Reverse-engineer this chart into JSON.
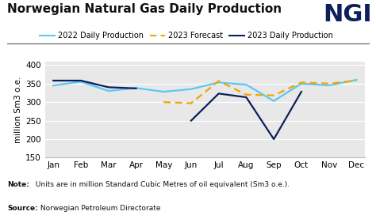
{
  "title": "Norwegian Natural Gas Daily Production",
  "ngi_logo": "NGI",
  "ylabel": "million Sm3 o.e.",
  "note_bold": "Note:",
  "note_rest": " Units are in million Standard Cubic Metres of oil equivalent (Sm3 o.e.).",
  "source_bold": "Source:",
  "source_rest": " Norwegian Petroleum Directorate",
  "months": [
    "Jan",
    "Feb",
    "Mar",
    "Apr",
    "May",
    "Jun",
    "Jul",
    "Aug",
    "Sep",
    "Oct",
    "Nov",
    "Dec"
  ],
  "ylim": [
    150,
    410
  ],
  "yticks": [
    150,
    200,
    250,
    300,
    350,
    400
  ],
  "prod_2022": [
    345,
    355,
    330,
    338,
    328,
    335,
    353,
    347,
    303,
    350,
    345,
    360
  ],
  "forecast_2023": [
    null,
    null,
    null,
    null,
    300,
    297,
    357,
    320,
    318,
    353,
    350,
    358
  ],
  "prod_2023": [
    358,
    358,
    340,
    337,
    null,
    250,
    323,
    313,
    200,
    328,
    null,
    null
  ],
  "color_2022": "#5bc8f5",
  "color_forecast": "#f0a500",
  "color_2023": "#0f1f5c",
  "background_color": "#ffffff",
  "plot_bg_color": "#e8e8e8",
  "title_fontsize": 11,
  "ngi_fontsize": 22,
  "legend_fontsize": 7,
  "axis_fontsize": 7.5,
  "note_fontsize": 6.5,
  "legend_labels": [
    "2022 Daily Production",
    "2023 Forecast",
    "2023 Daily Production"
  ]
}
